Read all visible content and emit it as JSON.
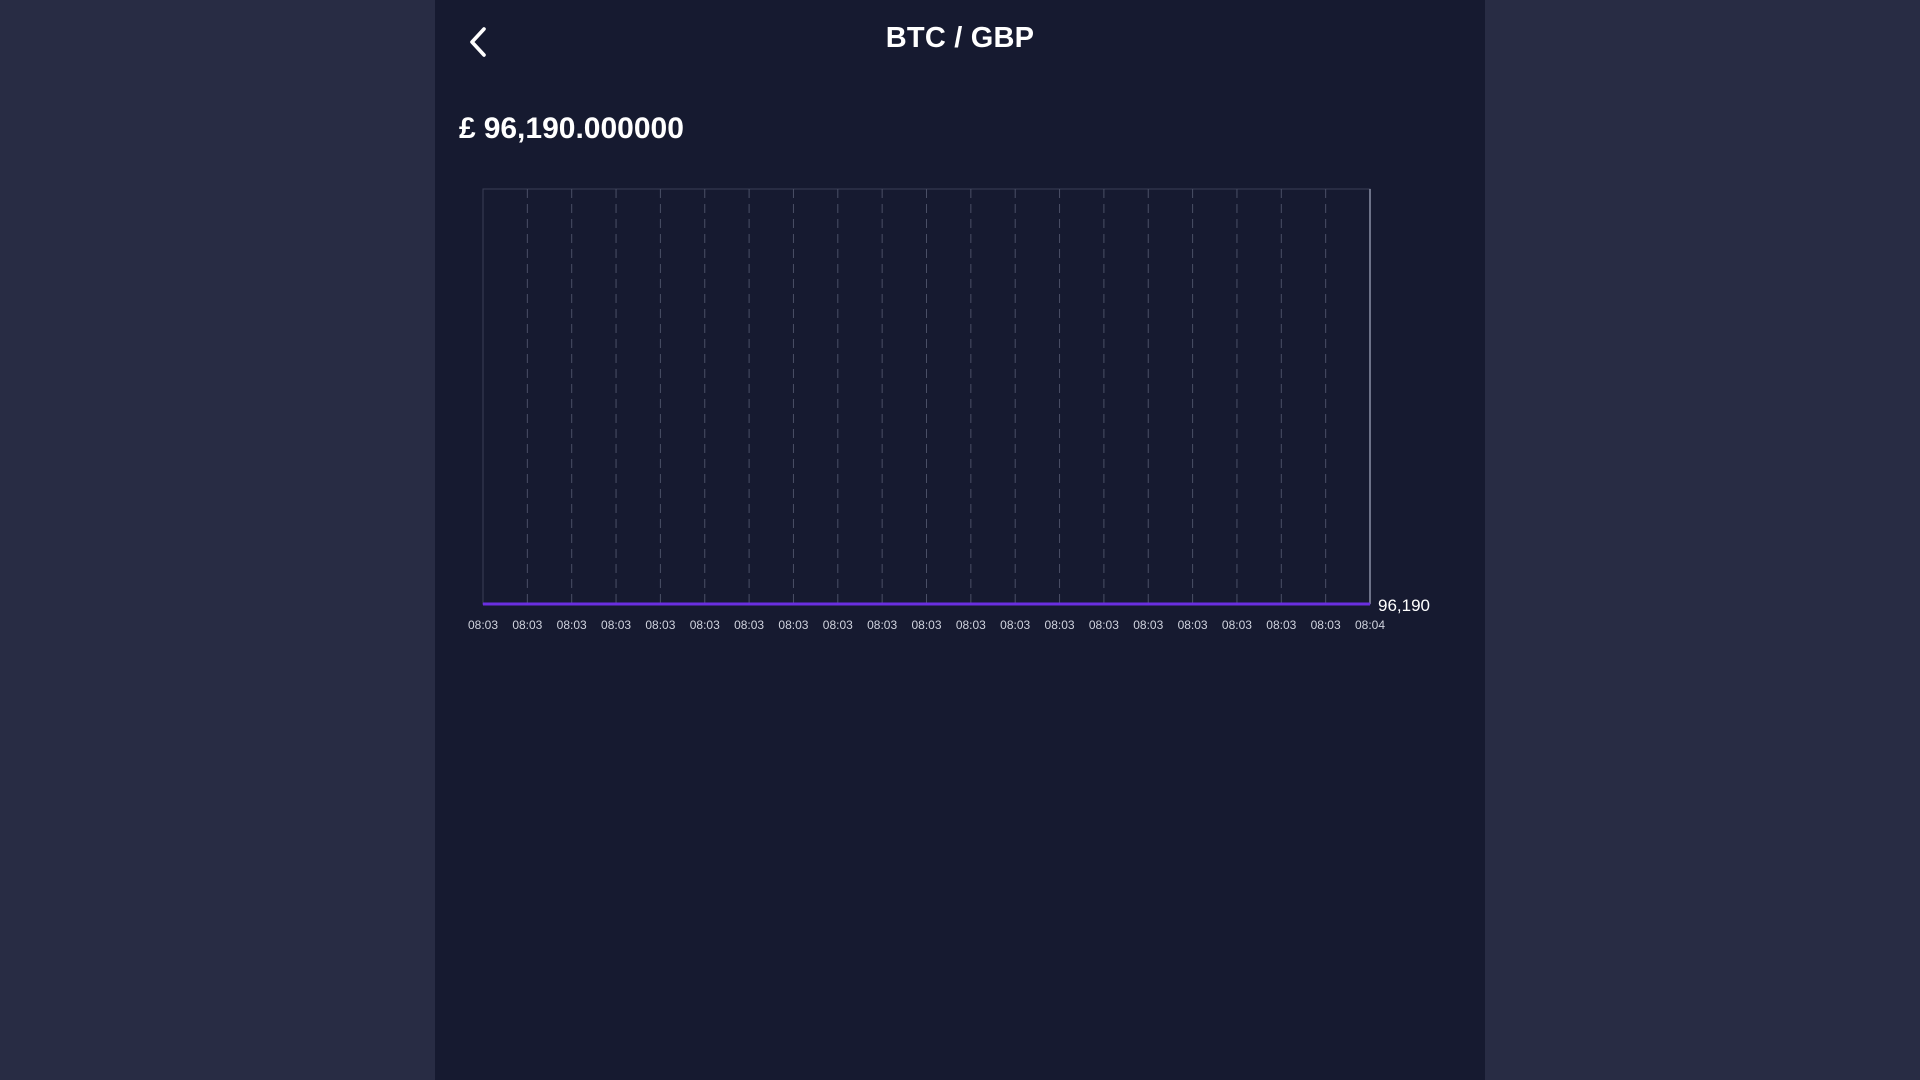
{
  "header": {
    "back_icon": "chevron-left-icon",
    "title": "BTC / GBP"
  },
  "price": {
    "currency_symbol": "£",
    "value": "96,190.000000"
  },
  "colors": {
    "page_background": "#282c44",
    "panel_background": "#161a30",
    "series_line": "#6a2fe0",
    "grid": "#4a4f66",
    "text": "#ffffff"
  },
  "chart_data": {
    "type": "line",
    "title": "",
    "xlabel": "",
    "ylabel": "",
    "x": [
      "08:03",
      "08:03",
      "08:03",
      "08:03",
      "08:03",
      "08:03",
      "08:03",
      "08:03",
      "08:03",
      "08:03",
      "08:03",
      "08:03",
      "08:03",
      "08:03",
      "08:03",
      "08:03",
      "08:03",
      "08:03",
      "08:03",
      "08:03",
      "08:04"
    ],
    "series": [
      {
        "values": [
          96190,
          96190,
          96190,
          96190,
          96190,
          96190,
          96190,
          96190,
          96190,
          96190,
          96190,
          96190,
          96190,
          96190,
          96190,
          96190,
          96190,
          96190,
          96190,
          96190,
          96190
        ]
      }
    ],
    "y_tick_labels": [
      "96,190"
    ],
    "y_axis_position": "right",
    "grid": true,
    "grid_style": "vertical dashed",
    "legend": "none"
  }
}
